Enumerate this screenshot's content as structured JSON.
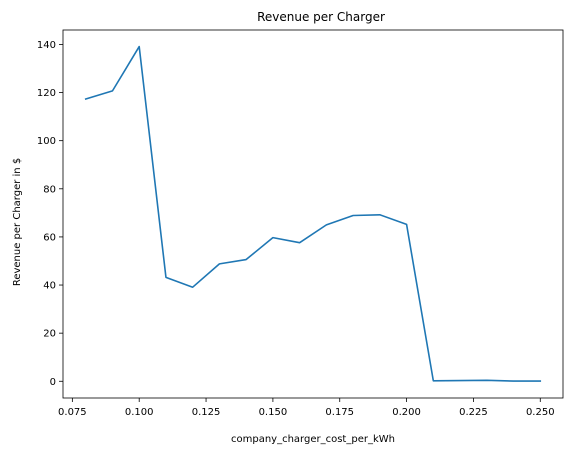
{
  "chart_data": {
    "type": "line",
    "title": "Revenue per Charger",
    "xlabel": "company_charger_cost_per_kWh",
    "ylabel": "Revenue per Charger in $",
    "xlim": [
      0.0715,
      0.2585
    ],
    "ylim": [
      -6.95,
      146.0
    ],
    "xticks": [
      0.075,
      0.1,
      0.125,
      0.15,
      0.175,
      0.2,
      0.225,
      0.25
    ],
    "xtick_labels": [
      "0.075",
      "0.100",
      "0.125",
      "0.150",
      "0.175",
      "0.200",
      "0.225",
      "0.250"
    ],
    "yticks": [
      0,
      20,
      40,
      60,
      80,
      100,
      120,
      140
    ],
    "ytick_labels": [
      "0",
      "20",
      "40",
      "60",
      "80",
      "100",
      "120",
      "140"
    ],
    "grid": false,
    "legend": "none",
    "series": [
      {
        "color": "#1f77b4",
        "x": [
          0.08,
          0.09,
          0.1,
          0.11,
          0.12,
          0.13,
          0.14,
          0.15,
          0.16,
          0.17,
          0.18,
          0.19,
          0.2,
          0.21,
          0.22,
          0.23,
          0.24,
          0.25
        ],
        "y": [
          117.3,
          120.7,
          139.1,
          43.2,
          39.1,
          48.8,
          50.6,
          59.7,
          57.6,
          65.0,
          68.9,
          69.2,
          65.2,
          0.2,
          0.3,
          0.4,
          0.1,
          0.1
        ]
      }
    ]
  }
}
